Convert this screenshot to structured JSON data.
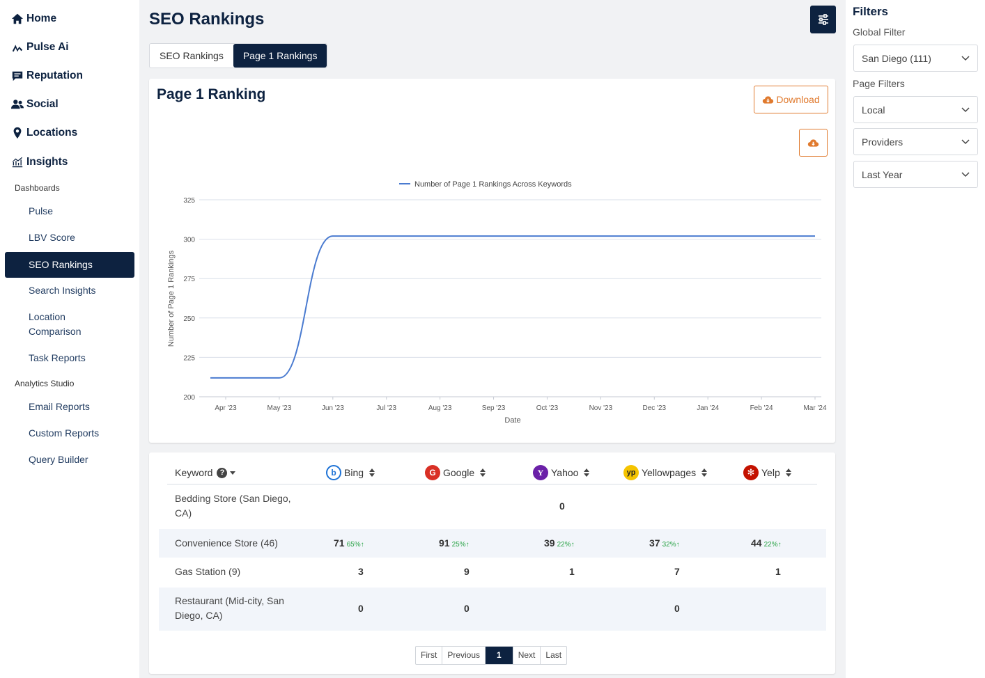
{
  "sidebar": {
    "main_items": [
      {
        "label": "Home",
        "icon": "home-icon"
      },
      {
        "label": "Pulse Ai",
        "icon": "pulse-ai-icon"
      },
      {
        "label": "Reputation",
        "icon": "chat-icon"
      },
      {
        "label": "Social",
        "icon": "users-icon"
      },
      {
        "label": "Locations",
        "icon": "map-pin-icon"
      },
      {
        "label": "Insights",
        "icon": "chart-icon"
      }
    ],
    "dashboards_label": "Dashboards",
    "dashboards": [
      "Pulse",
      "LBV Score",
      "SEO Rankings",
      "Search Insights",
      "Location Comparison",
      "Task Reports"
    ],
    "active_item": "SEO Rankings",
    "analytics_label": "Analytics Studio",
    "analytics": [
      "Email Reports",
      "Custom Reports",
      "Query Builder"
    ]
  },
  "header": {
    "title": "SEO Rankings",
    "filter_toggle_icon": "sliders-icon"
  },
  "tabs": [
    {
      "label": "SEO Rankings",
      "active": false
    },
    {
      "label": "Page 1 Rankings",
      "active": true
    }
  ],
  "chart_card": {
    "title": "Page 1 Ranking",
    "download_label": "Download",
    "download_icon": "cloud-download-icon"
  },
  "chart_data": {
    "type": "line",
    "title": "",
    "legend": "Number of Page 1 Rankings Across Keywords",
    "legend_position": "top-center",
    "xlabel": "Date",
    "ylabel": "Number of Page 1 Rankings",
    "x": [
      "Apr '23",
      "May '23",
      "Jun '23",
      "Jul '23",
      "Aug '23",
      "Sep '23",
      "Oct '23",
      "Nov '23",
      "Dec '23",
      "Jan '24",
      "Feb '24",
      "Mar '24"
    ],
    "series": [
      {
        "name": "Number of Page 1 Rankings Across Keywords",
        "values": [
          212,
          212,
          302,
          302,
          302,
          302,
          302,
          302,
          302,
          302,
          302,
          302
        ],
        "color": "#4a7bd0"
      }
    ],
    "ylim": [
      200,
      325
    ],
    "yticks": [
      200,
      225,
      250,
      275,
      300,
      325
    ],
    "grid": true
  },
  "table": {
    "headers": [
      {
        "label": "Keyword",
        "logo": "help-icon"
      },
      {
        "label": "Bing",
        "logo": "bing-logo",
        "color": "#1e73d6"
      },
      {
        "label": "Google",
        "logo": "google-logo",
        "color": "#d93025"
      },
      {
        "label": "Yahoo",
        "logo": "yahoo-logo",
        "color": "#6b21a8"
      },
      {
        "label": "Yellowpages",
        "logo": "yellowpages-logo",
        "color": "#f5c400"
      },
      {
        "label": "Yelp",
        "logo": "yelp-logo",
        "color": "#c41200"
      }
    ],
    "rows": [
      {
        "keyword": "Bedding Store (San Diego, CA)",
        "values": [
          "",
          "",
          "0",
          "",
          ""
        ],
        "changes": [
          "",
          "",
          "",
          "",
          ""
        ]
      },
      {
        "keyword": "Convenience Store (46)",
        "values": [
          "71",
          "91",
          "39",
          "37",
          "44"
        ],
        "changes": [
          "65%",
          "25%",
          "22%",
          "32%",
          "22%"
        ]
      },
      {
        "keyword": "Gas Station (9)",
        "values": [
          "3",
          "9",
          "1",
          "7",
          "1"
        ],
        "changes": [
          "",
          "",
          "",
          "",
          ""
        ]
      },
      {
        "keyword": "Restaurant (Mid-city, San Diego, CA)",
        "values": [
          "0",
          "0",
          "",
          "0",
          ""
        ],
        "changes": [
          "",
          "",
          "",
          "",
          ""
        ]
      }
    ],
    "pagination": {
      "first": "First",
      "previous": "Previous",
      "current": "1",
      "next": "Next",
      "last": "Last"
    }
  },
  "filters": {
    "title": "Filters",
    "global_label": "Global Filter",
    "global_value": "San Diego (111)",
    "page_label": "Page Filters",
    "page_values": [
      "Local",
      "Providers",
      "Last Year"
    ]
  }
}
